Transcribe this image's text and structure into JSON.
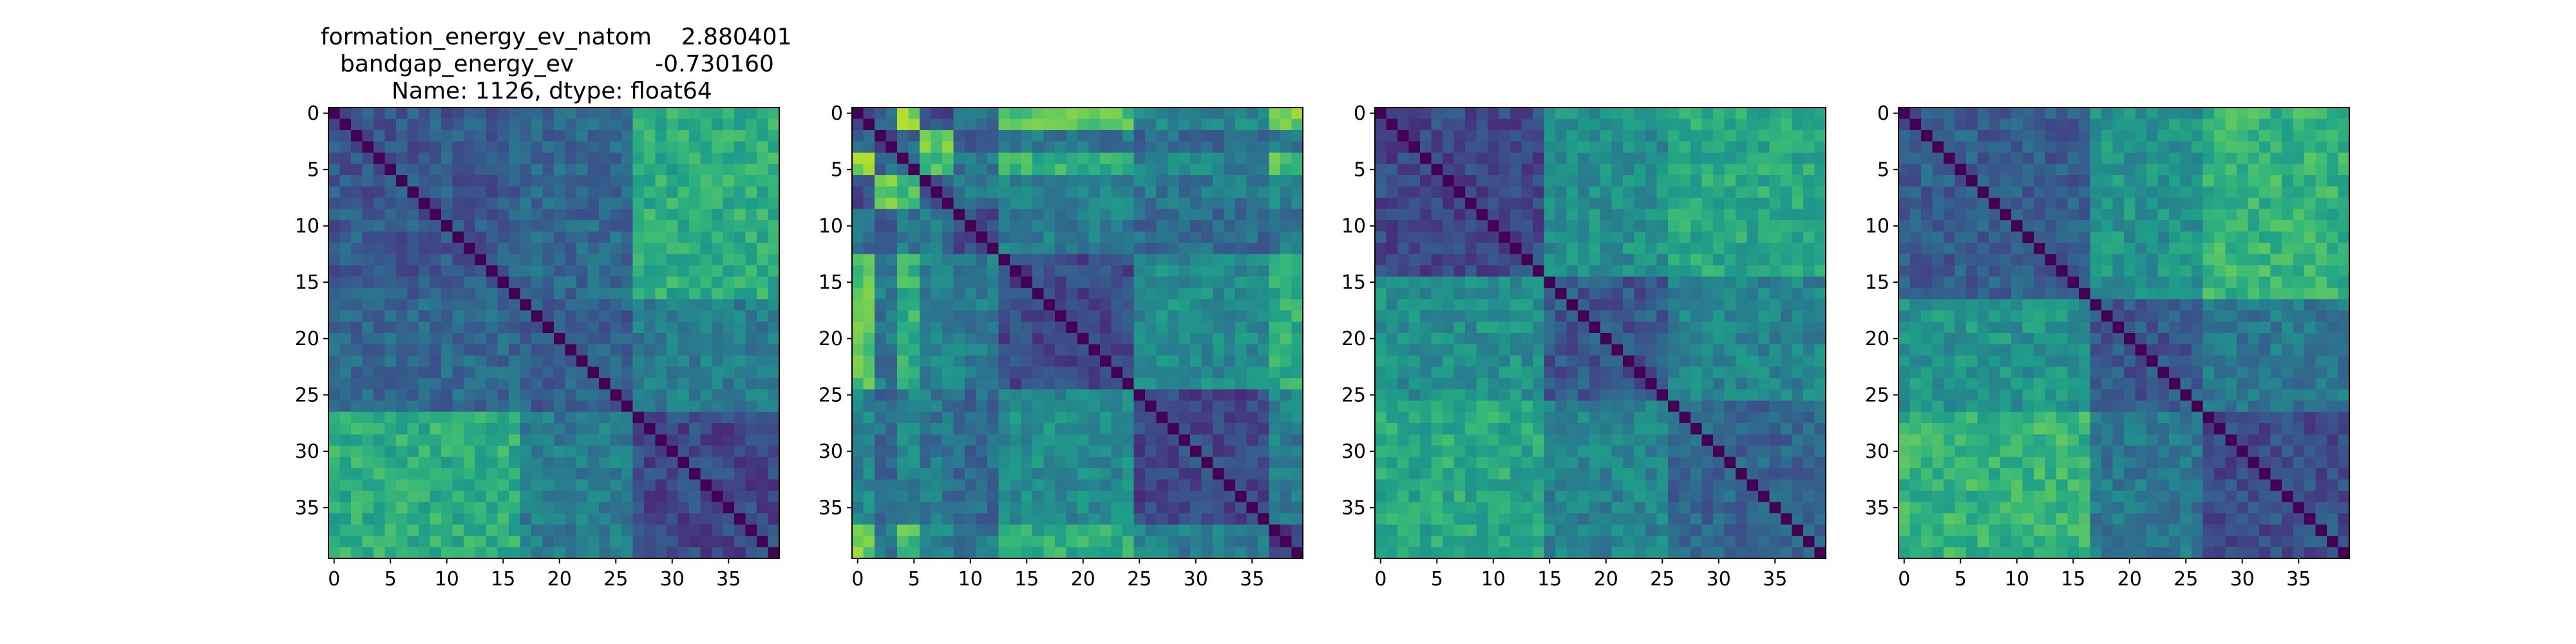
{
  "figure": {
    "title_lines": [
      "formation_energy_ev_natom    2.880401",
      "bandgap_energy_ev           -0.730160",
      "Name: 1126, dtype: float64"
    ]
  },
  "chart_data": [
    {
      "type": "heatmap",
      "size": 40,
      "xticks": [
        0,
        5,
        10,
        15,
        20,
        25,
        30,
        35
      ],
      "yticks": [
        0,
        5,
        10,
        15,
        20,
        25,
        30,
        35
      ],
      "colormap": "viridis",
      "block_boundaries": [
        0,
        17,
        27,
        40
      ],
      "block_level_matrix": [
        [
          0.28,
          0.34,
          0.62
        ],
        [
          0.34,
          0.3,
          0.42
        ],
        [
          0.62,
          0.42,
          0.22
        ]
      ]
    },
    {
      "type": "heatmap",
      "size": 40,
      "xticks": [
        0,
        5,
        10,
        15,
        20,
        25,
        30,
        35
      ],
      "yticks": [
        0,
        5,
        10,
        15,
        20,
        25,
        30,
        35
      ],
      "colormap": "viridis",
      "block_boundaries": [
        0,
        2,
        4,
        6,
        9,
        13,
        25,
        37,
        40
      ],
      "block_level_matrix": [
        [
          0.25,
          0.3,
          0.8,
          0.25,
          0.35,
          0.72,
          0.45,
          0.78
        ],
        [
          0.3,
          0.25,
          0.35,
          0.75,
          0.3,
          0.4,
          0.35,
          0.4
        ],
        [
          0.8,
          0.35,
          0.25,
          0.7,
          0.4,
          0.65,
          0.45,
          0.7
        ],
        [
          0.25,
          0.75,
          0.7,
          0.25,
          0.4,
          0.45,
          0.4,
          0.45
        ],
        [
          0.35,
          0.3,
          0.4,
          0.4,
          0.22,
          0.42,
          0.35,
          0.4
        ],
        [
          0.72,
          0.4,
          0.65,
          0.45,
          0.42,
          0.22,
          0.48,
          0.62
        ],
        [
          0.45,
          0.35,
          0.45,
          0.4,
          0.35,
          0.48,
          0.22,
          0.42
        ],
        [
          0.78,
          0.4,
          0.7,
          0.45,
          0.4,
          0.62,
          0.42,
          0.22
        ]
      ]
    },
    {
      "type": "heatmap",
      "size": 40,
      "xticks": [
        0,
        5,
        10,
        15,
        20,
        25,
        30,
        35
      ],
      "yticks": [
        0,
        5,
        10,
        15,
        20,
        25,
        30,
        35
      ],
      "colormap": "viridis",
      "block_boundaries": [
        0,
        15,
        26,
        40
      ],
      "block_level_matrix": [
        [
          0.22,
          0.5,
          0.6
        ],
        [
          0.5,
          0.28,
          0.45
        ],
        [
          0.6,
          0.45,
          0.32
        ]
      ]
    },
    {
      "type": "heatmap",
      "size": 40,
      "xticks": [
        0,
        5,
        10,
        15,
        20,
        25,
        30,
        35
      ],
      "yticks": [
        0,
        5,
        10,
        15,
        20,
        25,
        30,
        35
      ],
      "colormap": "viridis",
      "block_boundaries": [
        0,
        17,
        27,
        40
      ],
      "block_level_matrix": [
        [
          0.3,
          0.52,
          0.65
        ],
        [
          0.52,
          0.28,
          0.4
        ],
        [
          0.65,
          0.4,
          0.24
        ]
      ]
    }
  ]
}
